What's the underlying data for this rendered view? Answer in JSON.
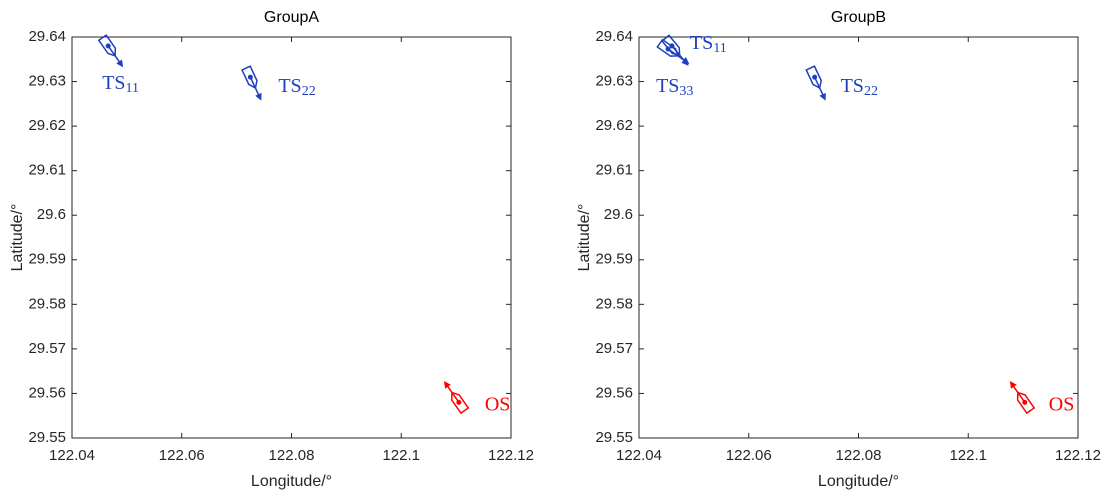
{
  "chart_data": [
    {
      "type": "scatter",
      "title": "GroupA",
      "xlabel": "Longitude/°",
      "ylabel": "Latitude/°",
      "xlim": [
        122.04,
        122.12
      ],
      "xticks": [
        122.04,
        122.06,
        122.08,
        122.1,
        122.12
      ],
      "ylim": [
        29.55,
        29.64
      ],
      "yticks": [
        29.55,
        29.56,
        29.57,
        29.58,
        29.59,
        29.6,
        29.61,
        29.62,
        29.63,
        29.64
      ],
      "series": [
        {
          "name": "TS",
          "sub": "11",
          "color": "#1f3fbf",
          "x": [
            122.0466
          ],
          "values": [
            29.638
          ],
          "course": [
            145
          ]
        },
        {
          "name": "TS",
          "sub": "22",
          "color": "#1f3fbf",
          "x": [
            122.0725
          ],
          "values": [
            29.631
          ],
          "course": [
            155
          ]
        },
        {
          "name": "OS",
          "color": "#ff0000",
          "x": [
            122.1105
          ],
          "values": [
            29.558
          ],
          "course": [
            325
          ]
        }
      ]
    },
    {
      "type": "scatter",
      "title": "GroupB",
      "xlabel": "Longitude/°",
      "ylabel": "Latitude/°",
      "xlim": [
        122.04,
        122.12
      ],
      "xticks": [
        122.04,
        122.06,
        122.08,
        122.1,
        122.12
      ],
      "ylim": [
        29.55,
        29.64
      ],
      "yticks": [
        29.55,
        29.56,
        29.57,
        29.58,
        29.59,
        29.6,
        29.61,
        29.62,
        29.63,
        29.64
      ],
      "series": [
        {
          "name": "TS",
          "sub": "11",
          "color": "#1f3fbf",
          "x": [
            122.046
          ],
          "values": [
            29.638
          ],
          "course": [
            140
          ]
        },
        {
          "name": "TS",
          "sub": "33",
          "color": "#1f3fbf",
          "x": [
            122.0453
          ],
          "values": [
            29.6373
          ],
          "course": [
            125
          ]
        },
        {
          "name": "TS",
          "sub": "22",
          "color": "#1f3fbf",
          "x": [
            122.072
          ],
          "values": [
            29.631
          ],
          "course": [
            155
          ]
        },
        {
          "name": "OS",
          "color": "#ff0000",
          "x": [
            122.1103
          ],
          "values": [
            29.558
          ],
          "course": [
            325
          ]
        }
      ]
    }
  ]
}
